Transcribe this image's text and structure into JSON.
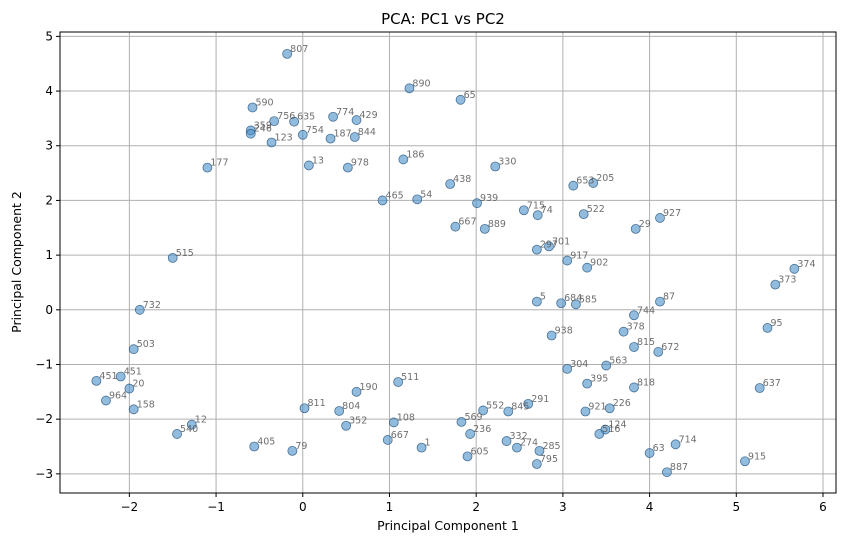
{
  "chart_data": {
    "type": "scatter",
    "title": "PCA: PC1 vs PC2",
    "xlabel": "Principal Component 1",
    "ylabel": "Principal Component 2",
    "xlim": [
      -2.8,
      6.15
    ],
    "ylim": [
      -3.35,
      5.08
    ],
    "xticks": [
      -2,
      -1,
      0,
      1,
      2,
      3,
      4,
      5,
      6
    ],
    "yticks": [
      -3,
      -2,
      -1,
      0,
      1,
      2,
      3,
      4,
      5
    ],
    "grid": true,
    "point_color": "#4a90c8",
    "labeled_points": [
      {
        "label": "807",
        "x": -0.18,
        "y": 4.68
      },
      {
        "label": "890",
        "x": 1.23,
        "y": 4.05
      },
      {
        "label": "65",
        "x": 1.82,
        "y": 3.84
      },
      {
        "label": "590",
        "x": -0.58,
        "y": 3.7
      },
      {
        "label": "774",
        "x": 0.35,
        "y": 3.53
      },
      {
        "label": "429",
        "x": 0.62,
        "y": 3.47
      },
      {
        "label": "756",
        "x": -0.33,
        "y": 3.45
      },
      {
        "label": "635",
        "x": -0.1,
        "y": 3.44
      },
      {
        "label": "359",
        "x": -0.6,
        "y": 3.28
      },
      {
        "label": "246",
        "x": -0.6,
        "y": 3.22
      },
      {
        "label": "754",
        "x": 0.0,
        "y": 3.2
      },
      {
        "label": "187",
        "x": 0.32,
        "y": 3.13
      },
      {
        "label": "844",
        "x": 0.6,
        "y": 3.16
      },
      {
        "label": "123",
        "x": -0.36,
        "y": 3.06
      },
      {
        "label": "186",
        "x": 1.16,
        "y": 2.75
      },
      {
        "label": "330",
        "x": 2.22,
        "y": 2.62
      },
      {
        "label": "177",
        "x": -1.1,
        "y": 2.6
      },
      {
        "label": "13",
        "x": 0.07,
        "y": 2.64
      },
      {
        "label": "978",
        "x": 0.52,
        "y": 2.6
      },
      {
        "label": "438",
        "x": 1.7,
        "y": 2.3
      },
      {
        "label": "653",
        "x": 3.12,
        "y": 2.27
      },
      {
        "label": "205",
        "x": 3.35,
        "y": 2.32
      },
      {
        "label": "465",
        "x": 0.92,
        "y": 2.0
      },
      {
        "label": "54",
        "x": 1.32,
        "y": 2.02
      },
      {
        "label": "939",
        "x": 2.01,
        "y": 1.95
      },
      {
        "label": "715",
        "x": 2.55,
        "y": 1.82
      },
      {
        "label": "74",
        "x": 2.71,
        "y": 1.73
      },
      {
        "label": "522",
        "x": 3.24,
        "y": 1.75
      },
      {
        "label": "927",
        "x": 4.12,
        "y": 1.68
      },
      {
        "label": "29",
        "x": 3.84,
        "y": 1.48
      },
      {
        "label": "889",
        "x": 2.1,
        "y": 1.48
      },
      {
        "label": "667",
        "x": 1.76,
        "y": 1.52
      },
      {
        "label": "701",
        "x": 2.84,
        "y": 1.16
      },
      {
        "label": "297",
        "x": 2.7,
        "y": 1.1
      },
      {
        "label": "917",
        "x": 3.05,
        "y": 0.9
      },
      {
        "label": "902",
        "x": 3.28,
        "y": 0.77
      },
      {
        "label": "374",
        "x": 5.67,
        "y": 0.75
      },
      {
        "label": "373",
        "x": 5.45,
        "y": 0.46
      },
      {
        "label": "5",
        "x": 2.7,
        "y": 0.15
      },
      {
        "label": "684",
        "x": 2.98,
        "y": 0.12
      },
      {
        "label": "585",
        "x": 3.15,
        "y": 0.1
      },
      {
        "label": "87",
        "x": 4.12,
        "y": 0.15
      },
      {
        "label": "744",
        "x": 3.82,
        "y": -0.1
      },
      {
        "label": "95",
        "x": 5.36,
        "y": -0.33
      },
      {
        "label": "378",
        "x": 3.7,
        "y": -0.4
      },
      {
        "label": "938",
        "x": 2.87,
        "y": -0.47
      },
      {
        "label": "672",
        "x": 4.1,
        "y": -0.77
      },
      {
        "label": "815",
        "x": 3.82,
        "y": -0.68
      },
      {
        "label": "563",
        "x": 3.5,
        "y": -1.02
      },
      {
        "label": "304",
        "x": 3.05,
        "y": -1.08
      },
      {
        "label": "395",
        "x": 3.28,
        "y": -1.35
      },
      {
        "label": "818",
        "x": 3.82,
        "y": -1.42
      },
      {
        "label": "637",
        "x": 5.27,
        "y": -1.43
      },
      {
        "label": "226",
        "x": 3.54,
        "y": -1.8
      },
      {
        "label": "921",
        "x": 3.26,
        "y": -1.86
      },
      {
        "label": "291",
        "x": 2.6,
        "y": -1.72
      },
      {
        "label": "845",
        "x": 2.37,
        "y": -1.86
      },
      {
        "label": "552",
        "x": 2.08,
        "y": -1.84
      },
      {
        "label": "108",
        "x": 1.05,
        "y": -2.06
      },
      {
        "label": "569",
        "x": 1.83,
        "y": -2.05
      },
      {
        "label": "236",
        "x": 1.93,
        "y": -2.27
      },
      {
        "label": "124",
        "x": 3.49,
        "y": -2.19
      },
      {
        "label": "516",
        "x": 3.42,
        "y": -2.27
      },
      {
        "label": "667",
        "x": 0.98,
        "y": -2.38
      },
      {
        "label": "332",
        "x": 2.35,
        "y": -2.4
      },
      {
        "label": "1",
        "x": 1.37,
        "y": -2.52
      },
      {
        "label": "274",
        "x": 2.47,
        "y": -2.52
      },
      {
        "label": "285",
        "x": 2.73,
        "y": -2.58
      },
      {
        "label": "605",
        "x": 1.9,
        "y": -2.68
      },
      {
        "label": "795",
        "x": 2.7,
        "y": -2.82
      },
      {
        "label": "63",
        "x": 4.0,
        "y": -2.62
      },
      {
        "label": "714",
        "x": 4.3,
        "y": -2.46
      },
      {
        "label": "887",
        "x": 4.2,
        "y": -2.97
      },
      {
        "label": "915",
        "x": 5.1,
        "y": -2.77
      },
      {
        "label": "405",
        "x": -0.56,
        "y": -2.5
      },
      {
        "label": "79",
        "x": -0.12,
        "y": -2.58
      },
      {
        "label": "540",
        "x": -1.45,
        "y": -2.27
      },
      {
        "label": "12",
        "x": -1.28,
        "y": -2.1
      },
      {
        "label": "964",
        "x": -2.27,
        "y": -1.66
      },
      {
        "label": "451",
        "x": -2.38,
        "y": -1.3
      },
      {
        "label": "451",
        "x": -2.1,
        "y": -1.22
      },
      {
        "label": "20",
        "x": -2.0,
        "y": -1.44
      },
      {
        "label": "158",
        "x": -1.95,
        "y": -1.82
      },
      {
        "label": "732",
        "x": -1.88,
        "y": 0.0
      },
      {
        "label": "515",
        "x": -1.5,
        "y": 0.95
      },
      {
        "label": "503",
        "x": -1.95,
        "y": -0.72
      },
      {
        "label": "811",
        "x": 0.02,
        "y": -1.8
      },
      {
        "label": "804",
        "x": 0.42,
        "y": -1.85
      },
      {
        "label": "352",
        "x": 0.5,
        "y": -2.12
      },
      {
        "label": "190",
        "x": 0.62,
        "y": -1.5
      },
      {
        "label": "511",
        "x": 1.1,
        "y": -1.32
      }
    ]
  }
}
